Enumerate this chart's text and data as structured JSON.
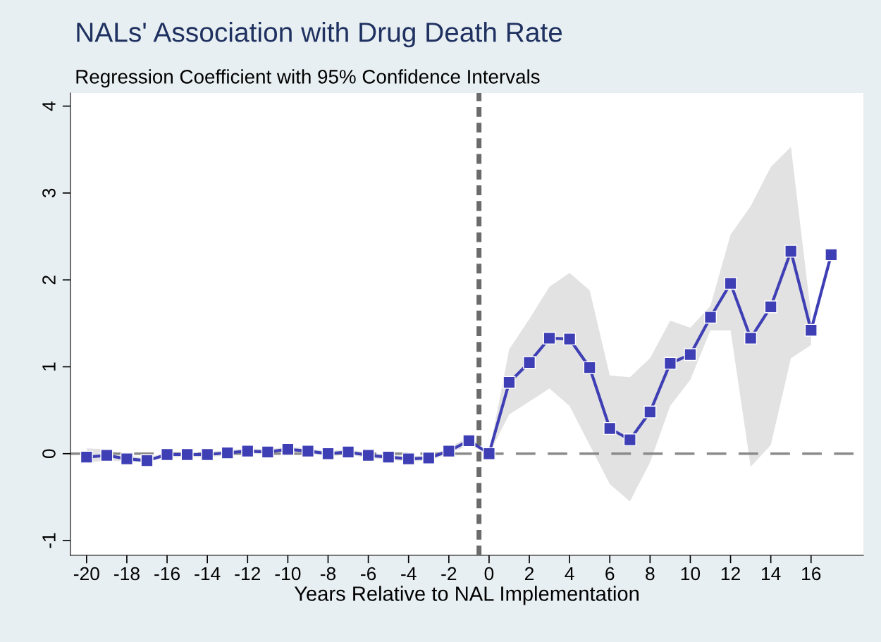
{
  "chart_data": {
    "type": "line",
    "title": "NALs' Association with Drug Death Rate",
    "subtitle": "Regression Coefficient with 95% Confidence Intervals",
    "xlabel": "Years Relative to NAL Implementation",
    "x": [
      -20,
      -19,
      -18,
      -17,
      -16,
      -15,
      -14,
      -13,
      -12,
      -11,
      -10,
      -9,
      -8,
      -7,
      -6,
      -5,
      -4,
      -3,
      -2,
      -1,
      0,
      1,
      2,
      3,
      4,
      5,
      6,
      7,
      8,
      9,
      10,
      11,
      12,
      13,
      14,
      15,
      16,
      17
    ],
    "series": [
      {
        "color": "#3f3fb5",
        "values": [
          -0.04,
          -0.02,
          -0.06,
          -0.08,
          -0.01,
          -0.01,
          -0.01,
          0.01,
          0.03,
          0.02,
          0.05,
          0.03,
          0.0,
          0.02,
          -0.02,
          -0.04,
          -0.06,
          -0.05,
          0.03,
          0.15,
          0.0,
          0.82,
          1.05,
          1.33,
          1.32,
          0.99,
          0.29,
          0.16,
          0.48,
          1.04,
          1.14,
          1.57,
          1.96,
          1.33,
          1.69,
          2.33,
          1.42,
          2.29
        ],
        "lower": [
          -0.1,
          -0.08,
          -0.09,
          -0.1,
          -0.04,
          -0.04,
          -0.04,
          -0.02,
          0.0,
          -0.01,
          0.02,
          0.0,
          -0.03,
          -0.01,
          -0.05,
          -0.07,
          -0.09,
          -0.08,
          0.0,
          0.1,
          0.0,
          0.45,
          0.6,
          0.75,
          0.55,
          0.1,
          -0.35,
          -0.55,
          -0.1,
          0.55,
          0.85,
          1.42,
          1.42,
          -0.15,
          0.1,
          1.1,
          1.25,
          null
        ],
        "upper": [
          0.06,
          0.05,
          -0.02,
          -0.05,
          0.02,
          0.02,
          0.02,
          0.04,
          0.06,
          0.05,
          0.08,
          0.06,
          0.03,
          0.05,
          0.01,
          -0.01,
          -0.03,
          -0.02,
          0.06,
          0.2,
          0.0,
          1.2,
          1.55,
          1.92,
          2.08,
          1.88,
          0.9,
          0.88,
          1.1,
          1.53,
          1.45,
          1.7,
          2.52,
          2.85,
          3.3,
          3.53,
          1.6,
          null
        ]
      }
    ],
    "xlim": [
      -20.8,
      18.6
    ],
    "ylim": [
      -1.17,
      4.15
    ],
    "xticks": [
      -20,
      -18,
      -16,
      -14,
      -12,
      -10,
      -8,
      -6,
      -4,
      -2,
      0,
      2,
      4,
      6,
      8,
      10,
      12,
      14,
      16
    ],
    "yticks": [
      -1,
      0,
      1,
      2,
      3,
      4
    ],
    "ref_lines": [
      {
        "axis": "x",
        "value": -0.5,
        "color": "#6b6b6b",
        "line_style": "dotted"
      },
      {
        "axis": "y",
        "value": 0,
        "color": "#8a8a8a",
        "line_style": "dashed"
      }
    ],
    "marker": "square",
    "line_style": "solid",
    "grid": false,
    "legend": false
  }
}
